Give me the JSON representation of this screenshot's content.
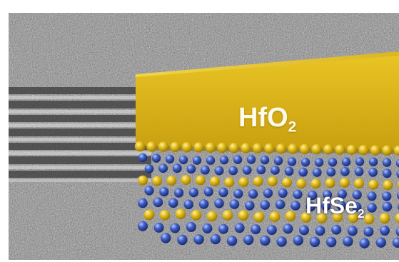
{
  "layers": {
    "top": {
      "element": "Hf",
      "formula_main": "HfO",
      "formula_sub": "2"
    },
    "bottom": {
      "element": "Hf",
      "formula_main": "HfSe",
      "formula_sub": "2"
    }
  },
  "colors": {
    "oxide_yellow": "#dcb21a",
    "atom_yellow": "#e2bd1c",
    "atom_blue": "#3f5fc6",
    "background_gray": "#8a8a8a",
    "lattice_dark": "#3a3a3a"
  }
}
